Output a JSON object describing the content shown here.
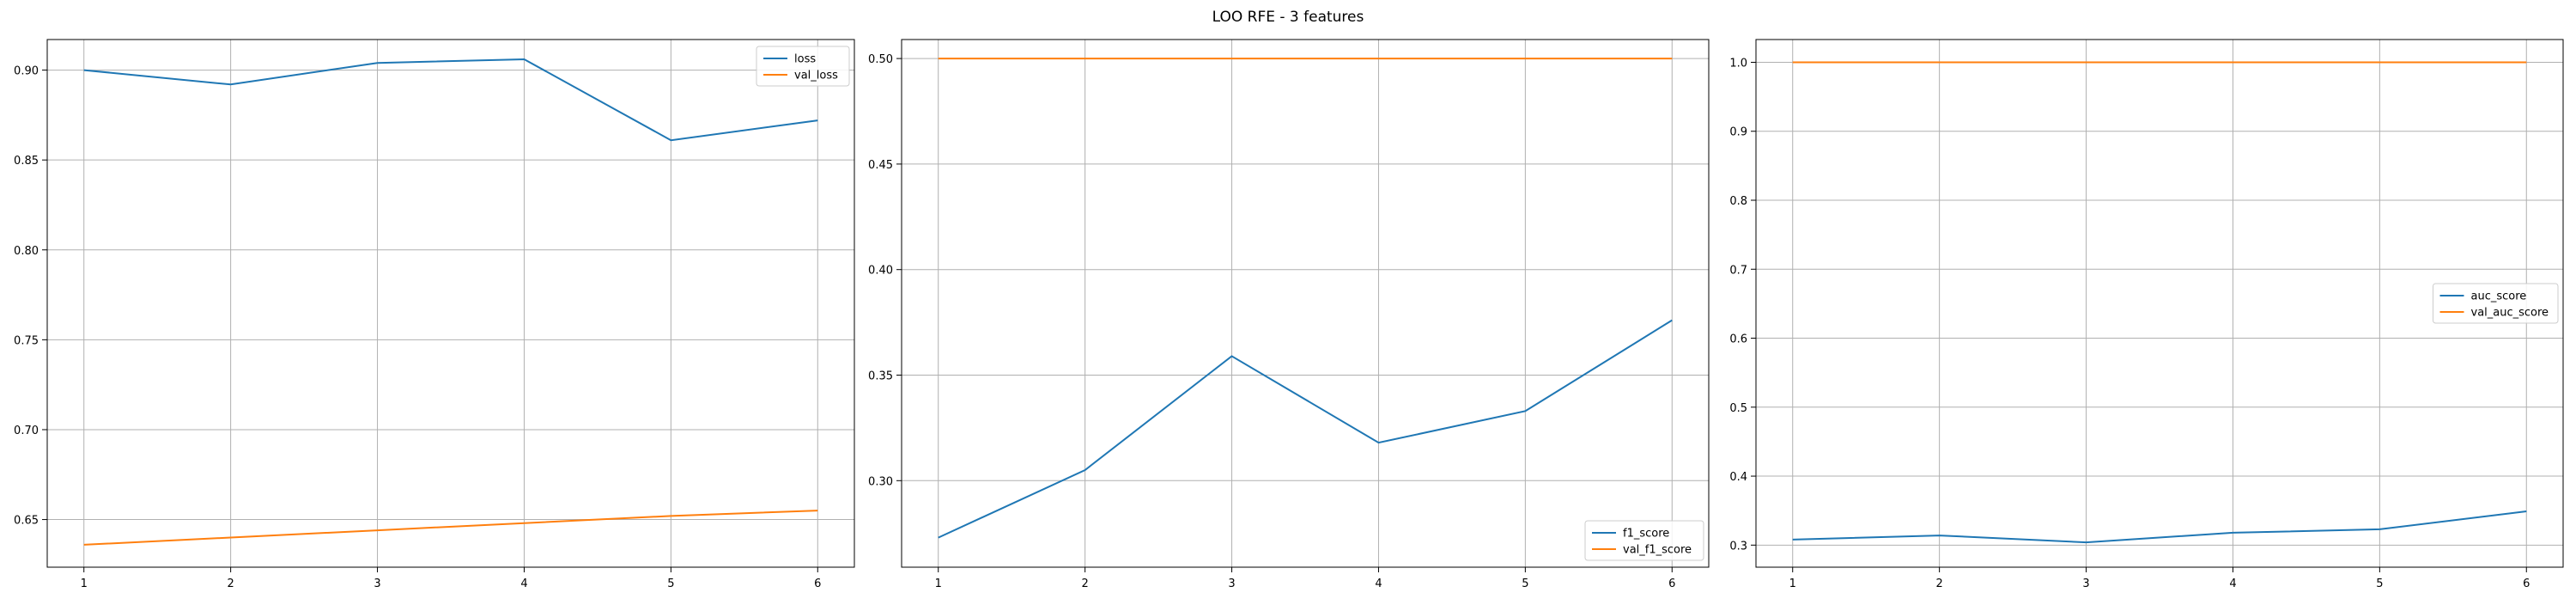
{
  "title": "LOO RFE - 3 features",
  "colors": {
    "series1": "#1f77b4",
    "series2": "#ff7f0e",
    "grid": "#b0b0b0"
  },
  "chart_data": [
    {
      "type": "line",
      "x": [
        1,
        2,
        3,
        4,
        5,
        6
      ],
      "xlim": [
        0.75,
        6.25
      ],
      "ylim": [
        0.6235,
        0.917
      ],
      "yticks": [
        0.65,
        0.7,
        0.75,
        0.8,
        0.85,
        0.9
      ],
      "xticks": [
        1,
        2,
        3,
        4,
        5,
        6
      ],
      "grid": true,
      "legend": "top-right",
      "series": [
        {
          "name": "loss",
          "values": [
            0.9,
            0.892,
            0.904,
            0.906,
            0.861,
            0.872
          ]
        },
        {
          "name": "val_loss",
          "values": [
            0.636,
            0.64,
            0.644,
            0.648,
            0.652,
            0.655
          ]
        }
      ]
    },
    {
      "type": "line",
      "x": [
        1,
        2,
        3,
        4,
        5,
        6
      ],
      "xlim": [
        0.75,
        6.25
      ],
      "ylim": [
        0.259,
        0.509
      ],
      "yticks": [
        0.3,
        0.35,
        0.4,
        0.45,
        0.5
      ],
      "xticks": [
        1,
        2,
        3,
        4,
        5,
        6
      ],
      "grid": true,
      "legend": "bottom-right",
      "series": [
        {
          "name": "f1_score",
          "values": [
            0.273,
            0.305,
            0.359,
            0.318,
            0.333,
            0.376
          ]
        },
        {
          "name": "val_f1_score",
          "values": [
            0.5,
            0.5,
            0.5,
            0.5,
            0.5,
            0.5
          ]
        }
      ]
    },
    {
      "type": "line",
      "x": [
        1,
        2,
        3,
        4,
        5,
        6
      ],
      "xlim": [
        0.75,
        6.25
      ],
      "ylim": [
        0.268,
        1.033
      ],
      "yticks": [
        0.3,
        0.4,
        0.5,
        0.6,
        0.7,
        0.8,
        0.9,
        1.0
      ],
      "xticks": [
        1,
        2,
        3,
        4,
        5,
        6
      ],
      "grid": true,
      "legend": "center-right",
      "series": [
        {
          "name": "auc_score",
          "values": [
            0.308,
            0.314,
            0.304,
            0.318,
            0.323,
            0.349
          ]
        },
        {
          "name": "val_auc_score",
          "values": [
            1.0,
            1.0,
            1.0,
            1.0,
            1.0,
            1.0
          ]
        }
      ]
    }
  ]
}
